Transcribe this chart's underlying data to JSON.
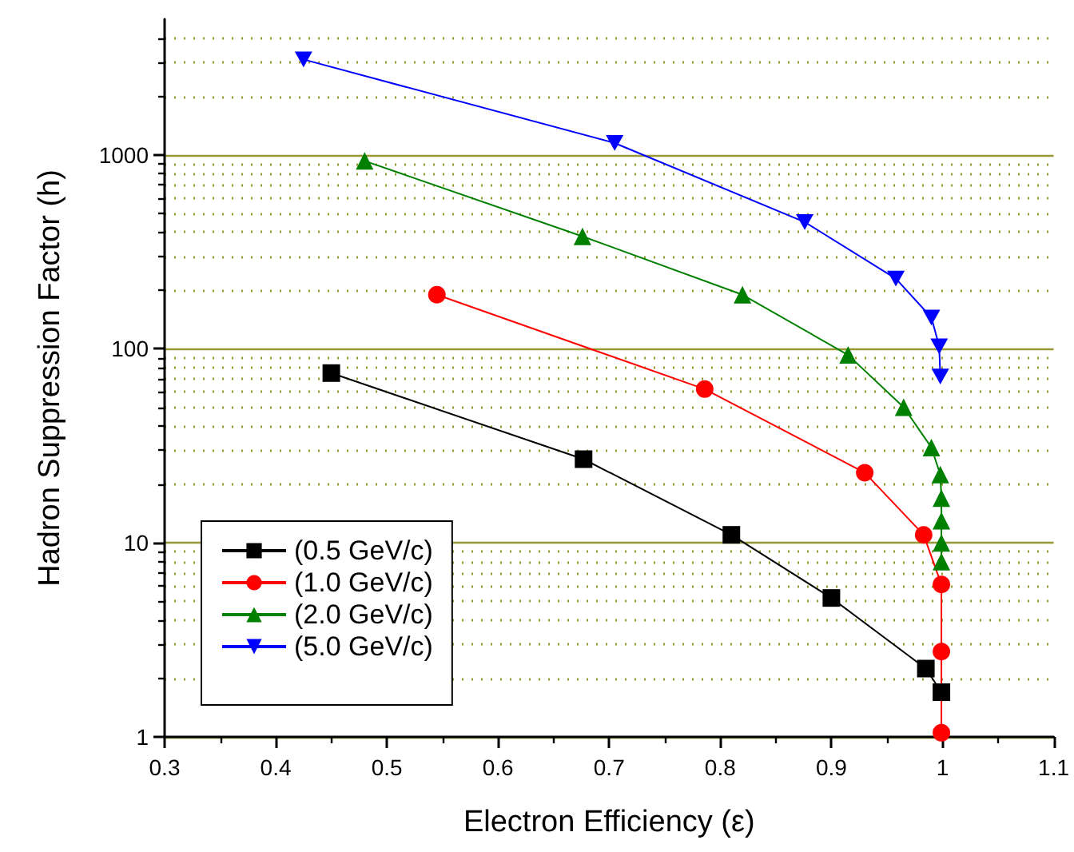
{
  "chart_data": {
    "type": "line",
    "xlabel": "Electron Efficiency (ε)",
    "ylabel": "Hadron Suppression Factor (h)",
    "xlim": [
      0.3,
      1.1
    ],
    "xticks": [
      0.3,
      {
        "value": 0.35,
        "label": null
      },
      0.4,
      {
        "value": 0.45,
        "label": null
      },
      0.5,
      {
        "value": 0.55,
        "label": null
      },
      0.6,
      {
        "value": 0.65,
        "label": null
      },
      0.7,
      {
        "value": 0.75,
        "label": null
      },
      0.8,
      {
        "value": 0.85,
        "label": null
      },
      0.9,
      {
        "value": 0.95,
        "label": null
      },
      1.0,
      {
        "value": 1.05,
        "label": null
      },
      1.1
    ],
    "ylim": [
      1,
      5000
    ],
    "yticks": [
      1,
      {
        "value": 2,
        "label": null
      },
      {
        "value": 3,
        "label": null
      },
      {
        "value": 4,
        "label": null
      },
      {
        "value": 5,
        "label": null
      },
      {
        "value": 6,
        "label": null
      },
      {
        "value": 7,
        "label": null
      },
      {
        "value": 8,
        "label": null
      },
      {
        "value": 9,
        "label": null
      },
      10,
      {
        "value": 20,
        "label": null
      },
      {
        "value": 30,
        "label": null
      },
      {
        "value": 40,
        "label": null
      },
      {
        "value": 50,
        "label": null
      },
      {
        "value": 60,
        "label": null
      },
      {
        "value": 70,
        "label": null
      },
      {
        "value": 80,
        "label": null
      },
      {
        "value": 90,
        "label": null
      },
      100,
      {
        "value": 200,
        "label": null
      },
      {
        "value": 300,
        "label": null
      },
      {
        "value": 400,
        "label": null
      },
      {
        "value": 500,
        "label": null
      },
      {
        "value": 600,
        "label": null
      },
      {
        "value": 700,
        "label": null
      },
      {
        "value": 800,
        "label": null
      },
      {
        "value": 900,
        "label": null
      },
      1000,
      {
        "value": 2000,
        "label": null
      },
      {
        "value": 3000,
        "label": null
      },
      {
        "value": 4000,
        "label": null
      }
    ],
    "log": "y",
    "grid": "y",
    "legend": "bottom left",
    "series": [
      {
        "name": "(0.5 GeV/c)",
        "color": "#000000",
        "marker": "square",
        "x": [
          0.45,
          0.677,
          0.81,
          0.9,
          0.985,
          0.999
        ],
        "values": [
          75,
          27,
          11,
          5.2,
          2.25,
          1.7
        ]
      },
      {
        "name": "(1.0 GeV/c)",
        "color": "#ff0000",
        "marker": "circle",
        "x": [
          0.545,
          0.786,
          0.93,
          0.983,
          0.999,
          0.999,
          0.999
        ],
        "values": [
          190,
          62,
          23,
          11,
          6.1,
          2.75,
          1.05
        ]
      },
      {
        "name": "(2.0 GeV/c)",
        "color": "#008000",
        "marker": "triangle",
        "x": [
          0.48,
          0.676,
          0.82,
          0.915,
          0.965,
          0.99,
          0.998,
          0.999,
          0.999,
          0.999,
          0.999
        ],
        "values": [
          930,
          380,
          190,
          93,
          50,
          31,
          22.5,
          17,
          13,
          10,
          8
        ]
      },
      {
        "name": "(5.0 GeV/c)",
        "color": "#0000ff",
        "marker": "triangle-down",
        "x": [
          0.425,
          0.705,
          0.876,
          0.958,
          0.99,
          0.997,
          0.998
        ],
        "values": [
          3100,
          1150,
          450,
          230,
          145,
          103,
          72
        ]
      }
    ]
  }
}
